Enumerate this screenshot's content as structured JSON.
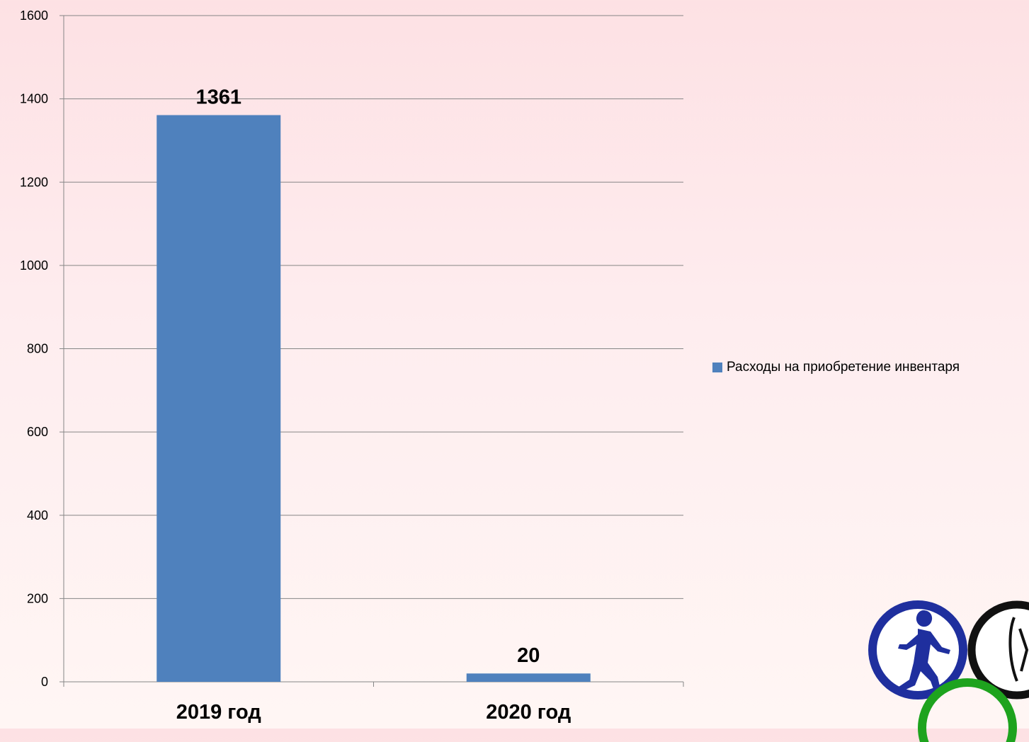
{
  "chart_data": {
    "type": "bar",
    "categories": [
      "2019 год",
      "2020 год"
    ],
    "series": [
      {
        "name": "Расходы на приобретение инвентаря",
        "values": [
          1361,
          20
        ],
        "color": "#4f81bd"
      }
    ],
    "data_labels": [
      "1361",
      "20"
    ],
    "yticks": [
      0,
      200,
      400,
      600,
      800,
      1000,
      1200,
      1400,
      1600
    ],
    "ylim": [
      0,
      1600
    ],
    "grid": true,
    "legend_position": "right"
  },
  "logo": {
    "type": "olympic-style rings with athlete silhouettes",
    "ring_colors": [
      "#1f2f9e",
      "#111111",
      "#1ea31e"
    ]
  }
}
